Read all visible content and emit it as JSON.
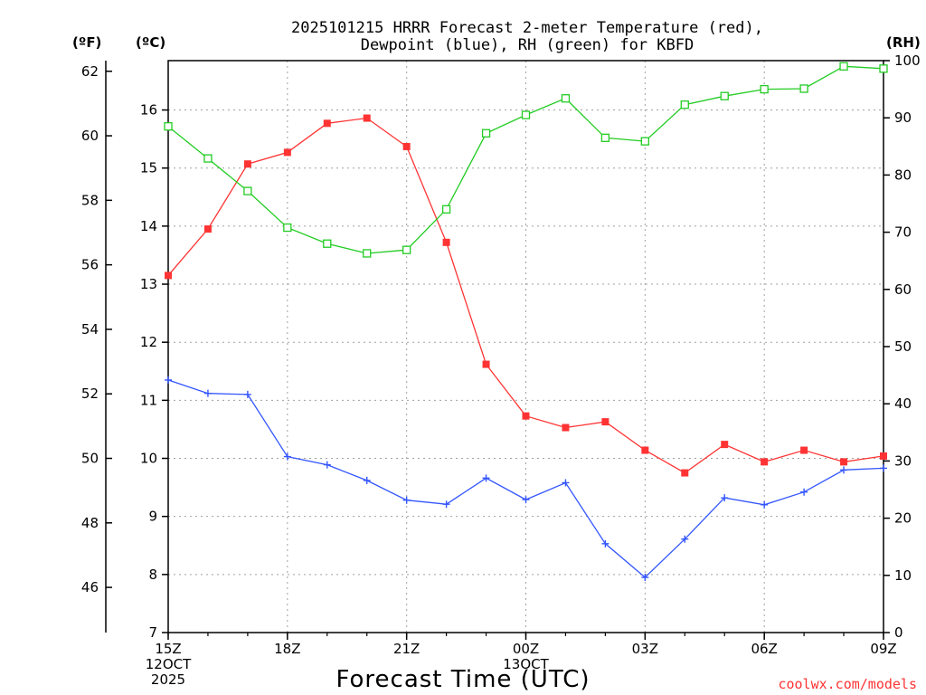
{
  "chart_data": {
    "type": "line",
    "title_line1": "2025101215 HRRR Forecast 2-meter Temperature (red),",
    "title_line2": "Dewpoint (blue), RH (green) for KBFD",
    "xlabel": "Forecast Time (UTC)",
    "credit": "coolwx.com/models",
    "units": {
      "fahrenheit": "(ºF)",
      "celsius": "(ºC)",
      "rh": "(RH)"
    },
    "x": [
      "15Z",
      "16Z",
      "17Z",
      "18Z",
      "19Z",
      "20Z",
      "21Z",
      "22Z",
      "23Z",
      "00Z",
      "01Z",
      "02Z",
      "03Z",
      "04Z",
      "05Z",
      "06Z",
      "07Z",
      "08Z",
      "09Z"
    ],
    "x_ticks": [
      {
        "index": 0,
        "lines": [
          "15Z",
          "12OCT",
          "2025"
        ]
      },
      {
        "index": 3,
        "lines": [
          "18Z"
        ]
      },
      {
        "index": 6,
        "lines": [
          "21Z"
        ]
      },
      {
        "index": 9,
        "lines": [
          "00Z",
          "13OCT"
        ]
      },
      {
        "index": 12,
        "lines": [
          "03Z"
        ]
      },
      {
        "index": 15,
        "lines": [
          "06Z"
        ]
      },
      {
        "index": 18,
        "lines": [
          "09Z"
        ]
      }
    ],
    "x_minor_every": 1,
    "celsius_axis": {
      "range": [
        7,
        16.85
      ],
      "ticks": [
        7,
        8,
        9,
        10,
        11,
        12,
        13,
        14,
        15,
        16
      ]
    },
    "fahrenheit_axis": {
      "ticks": [
        46,
        48,
        50,
        52,
        54,
        56,
        58,
        60,
        62
      ]
    },
    "rh_axis": {
      "range": [
        0,
        100
      ],
      "ticks": [
        0,
        10,
        20,
        30,
        40,
        50,
        60,
        70,
        80,
        90,
        100
      ]
    },
    "series": [
      {
        "name": "Temperature",
        "axis": "celsius",
        "color": "#ff3333",
        "marker": "filled-square",
        "values": [
          13.15,
          13.95,
          15.07,
          15.27,
          15.77,
          15.86,
          15.37,
          13.72,
          11.62,
          10.73,
          10.53,
          10.63,
          10.14,
          9.75,
          10.24,
          9.94,
          10.14,
          9.94,
          10.04
        ]
      },
      {
        "name": "Dewpoint",
        "axis": "celsius",
        "color": "#3355ff",
        "marker": "plus",
        "values": [
          11.35,
          11.12,
          11.1,
          10.03,
          9.89,
          9.62,
          9.28,
          9.21,
          9.66,
          9.29,
          9.58,
          8.53,
          7.95,
          8.61,
          9.32,
          9.2,
          9.42,
          9.8,
          9.83
        ]
      },
      {
        "name": "RH",
        "axis": "rh",
        "color": "#22cc22",
        "marker": "open-square",
        "values": [
          88.5,
          82.9,
          77.2,
          70.8,
          68.0,
          66.3,
          66.9,
          74.0,
          87.3,
          90.5,
          93.4,
          86.5,
          85.9,
          92.3,
          93.8,
          95.0,
          95.1,
          99.0,
          98.6
        ]
      }
    ]
  }
}
